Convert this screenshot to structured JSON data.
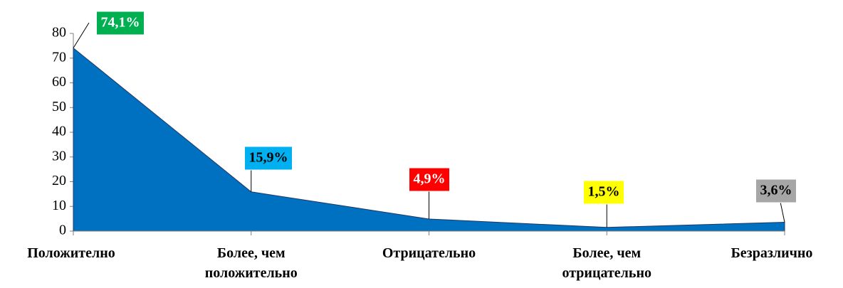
{
  "chart_data": {
    "type": "area",
    "categories": [
      "Положително",
      "Более, чем положительно",
      "Отрицательно",
      "Более, чем отрицательно",
      "Безразлично"
    ],
    "values": [
      74.1,
      15.9,
      4.9,
      1.5,
      3.6
    ],
    "value_labels": [
      "74,1%",
      "15,9%",
      "4,9%",
      "1,5%",
      "3,6%"
    ],
    "label_colors": [
      "#00b050",
      "#00b0f0",
      "#ff0000",
      "#ffff00",
      "#a6a6a6"
    ],
    "label_text_colors": [
      "#ffffff",
      "#000000",
      "#ffffff",
      "#000000",
      "#000000"
    ],
    "color": "#0070c0",
    "ylim": [
      0,
      80
    ],
    "yticks": [
      0,
      10,
      20,
      30,
      40,
      50,
      60,
      70,
      80
    ]
  }
}
